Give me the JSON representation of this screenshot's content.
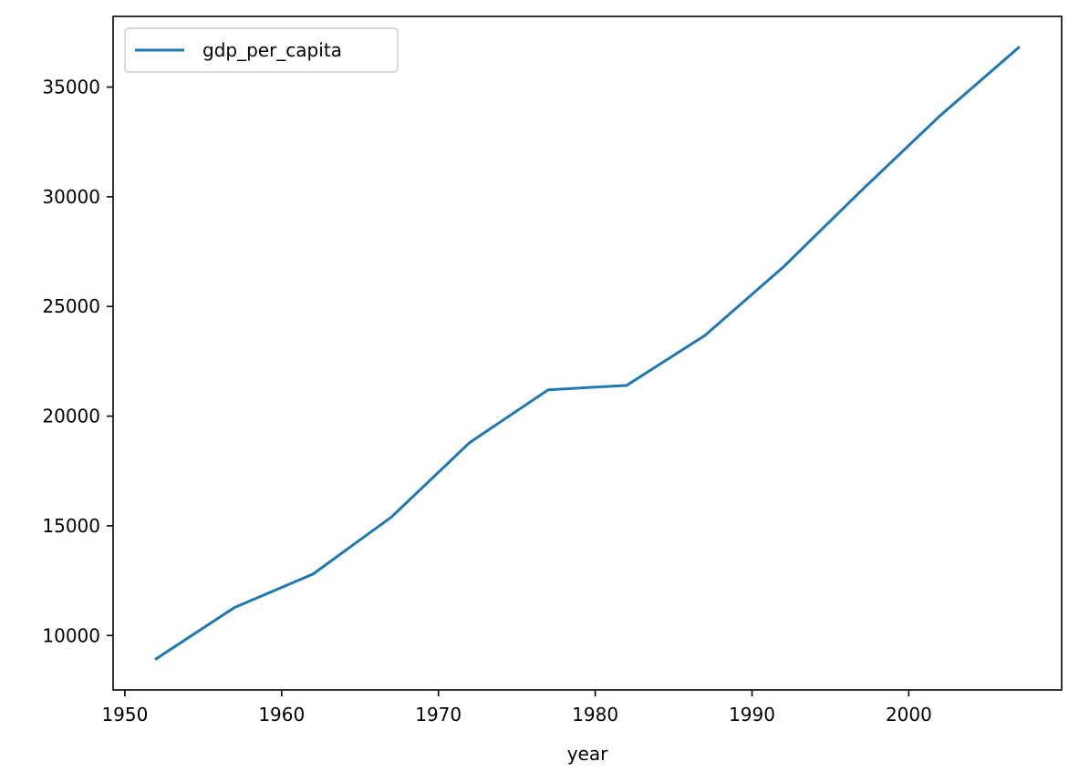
{
  "chart_data": {
    "type": "line",
    "xlabel": "year",
    "ylabel": "",
    "xlim": [
      1949.25,
      2009.75
    ],
    "ylim": [
      7518,
      38222
    ],
    "xticks": [
      1950,
      1960,
      1970,
      1980,
      1990,
      2000
    ],
    "yticks": [
      10000,
      15000,
      20000,
      25000,
      30000,
      35000
    ],
    "x": [
      1952,
      1957,
      1962,
      1967,
      1972,
      1977,
      1982,
      1987,
      1992,
      1997,
      2002,
      2007
    ],
    "series": [
      {
        "name": "gdp_per_capita",
        "color": "#1f77b4",
        "values": [
          8940,
          11280,
          12800,
          15400,
          18800,
          21200,
          21400,
          23680,
          26800,
          30300,
          33700,
          36800
        ]
      }
    ],
    "legend": {
      "position": "upper-left",
      "entries": [
        "gdp_per_capita"
      ]
    },
    "grid": false
  }
}
